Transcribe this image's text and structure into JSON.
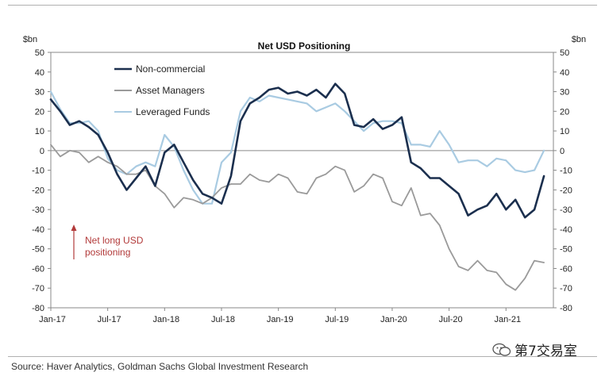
{
  "chart_data": {
    "type": "line",
    "title": "Net USD Positioning",
    "ylabel_left": "$bn",
    "ylabel_right": "$bn",
    "ylim": [
      -80,
      50
    ],
    "yticks_left": [
      "50",
      "40",
      "30",
      "20",
      "10",
      "0",
      "-10",
      "-20",
      "-30",
      "-40",
      "-50",
      "-60",
      "-70",
      "-80"
    ],
    "yticks_right": [
      "50",
      "40",
      "30",
      "20",
      "10",
      "0",
      "-10",
      "-20",
      "-30",
      "-40",
      "-50",
      "-60",
      "-70",
      "-80"
    ],
    "xlim": [
      0,
      53
    ],
    "xtick_labels": [
      "Jan-17",
      "Jul-17",
      "Jan-18",
      "Jul-18",
      "Jan-19",
      "Jul-19",
      "Jan-20",
      "Jul-20",
      "Jan-21"
    ],
    "xtick_positions": [
      0,
      6,
      12,
      18,
      24,
      30,
      36,
      42,
      48
    ],
    "legend_position": "top-left",
    "series": [
      {
        "name": "Non-commercial",
        "color": "#1b2f4e",
        "x": [
          0,
          1,
          2,
          3,
          4,
          5,
          6,
          7,
          8,
          9,
          10,
          11,
          12,
          13,
          14,
          15,
          16,
          17,
          18,
          19,
          20,
          21,
          22,
          23,
          24,
          25,
          26,
          27,
          28,
          29,
          30,
          31,
          32,
          33,
          34,
          35,
          36,
          37,
          38,
          39,
          40,
          41,
          42,
          43,
          44,
          45,
          46,
          47,
          48,
          49,
          50,
          51,
          52
        ],
        "values": [
          26,
          20,
          13,
          15,
          12,
          8,
          -1,
          -12,
          -20,
          -14,
          -8,
          -18,
          -1,
          3,
          -6,
          -15,
          -22,
          -24,
          -27,
          -13,
          15,
          24,
          27,
          31,
          32,
          29,
          30,
          28,
          31,
          27,
          34,
          29,
          13,
          12,
          16,
          11,
          13,
          17,
          -6,
          -9,
          -14,
          -14,
          -18,
          -22,
          -33,
          -30,
          -28,
          -22,
          -30,
          -25,
          -34,
          -30,
          -13
        ]
      },
      {
        "name": "Asset Managers",
        "color": "#9a9a9a",
        "x": [
          0,
          1,
          2,
          3,
          4,
          5,
          6,
          7,
          8,
          9,
          10,
          11,
          12,
          13,
          14,
          15,
          16,
          17,
          18,
          19,
          20,
          21,
          22,
          23,
          24,
          25,
          26,
          27,
          28,
          29,
          30,
          31,
          32,
          33,
          34,
          35,
          36,
          37,
          38,
          39,
          40,
          41,
          42,
          43,
          44,
          45,
          46,
          47,
          48,
          49,
          50,
          51,
          52
        ],
        "values": [
          3,
          -3,
          0,
          -1,
          -6,
          -3,
          -6,
          -8,
          -12,
          -12,
          -10,
          -18,
          -22,
          -29,
          -24,
          -25,
          -27,
          -24,
          -19,
          -17,
          -17,
          -12,
          -15,
          -16,
          -12,
          -14,
          -21,
          -22,
          -14,
          -12,
          -8,
          -10,
          -21,
          -18,
          -12,
          -14,
          -26,
          -28,
          -19,
          -33,
          -32,
          -38,
          -50,
          -59,
          -61,
          -56,
          -61,
          -62,
          -68,
          -71,
          -65,
          -56,
          -57
        ]
      },
      {
        "name": "Leveraged Funds",
        "color": "#a9cbe2",
        "x": [
          0,
          1,
          2,
          3,
          4,
          5,
          6,
          7,
          8,
          9,
          10,
          11,
          12,
          13,
          14,
          15,
          16,
          17,
          18,
          19,
          20,
          21,
          22,
          23,
          24,
          25,
          26,
          27,
          28,
          29,
          30,
          31,
          32,
          33,
          34,
          35,
          36,
          37,
          38,
          39,
          40,
          41,
          42,
          43,
          44,
          45,
          46,
          47,
          48,
          49,
          50,
          51,
          52
        ],
        "values": [
          30,
          21,
          14,
          14,
          15,
          10,
          -4,
          -10,
          -12,
          -8,
          -6,
          -8,
          8,
          2,
          -10,
          -20,
          -27,
          -27,
          -6,
          -1,
          20,
          27,
          25,
          28,
          27,
          26,
          25,
          24,
          20,
          22,
          24,
          20,
          15,
          10,
          14,
          15,
          15,
          14,
          3,
          3,
          2,
          10,
          3,
          -6,
          -5,
          -5,
          -8,
          -4,
          -5,
          -10,
          -11,
          -10,
          0
        ]
      }
    ],
    "annotation": "Net long USD\npositioning",
    "annotation_lines": [
      "Net long USD",
      "positioning"
    ],
    "annotation_color": "#b23a3a"
  },
  "legend": {
    "items": [
      {
        "label": "Non-commercial",
        "color": "#1b2f4e"
      },
      {
        "label": "Asset Managers",
        "color": "#9a9a9a"
      },
      {
        "label": "Leveraged Funds",
        "color": "#a9cbe2"
      }
    ]
  },
  "footer": {
    "source": "Source: Haver Analytics, Goldman Sachs Global Investment Research",
    "watermark": "第7交易室"
  }
}
